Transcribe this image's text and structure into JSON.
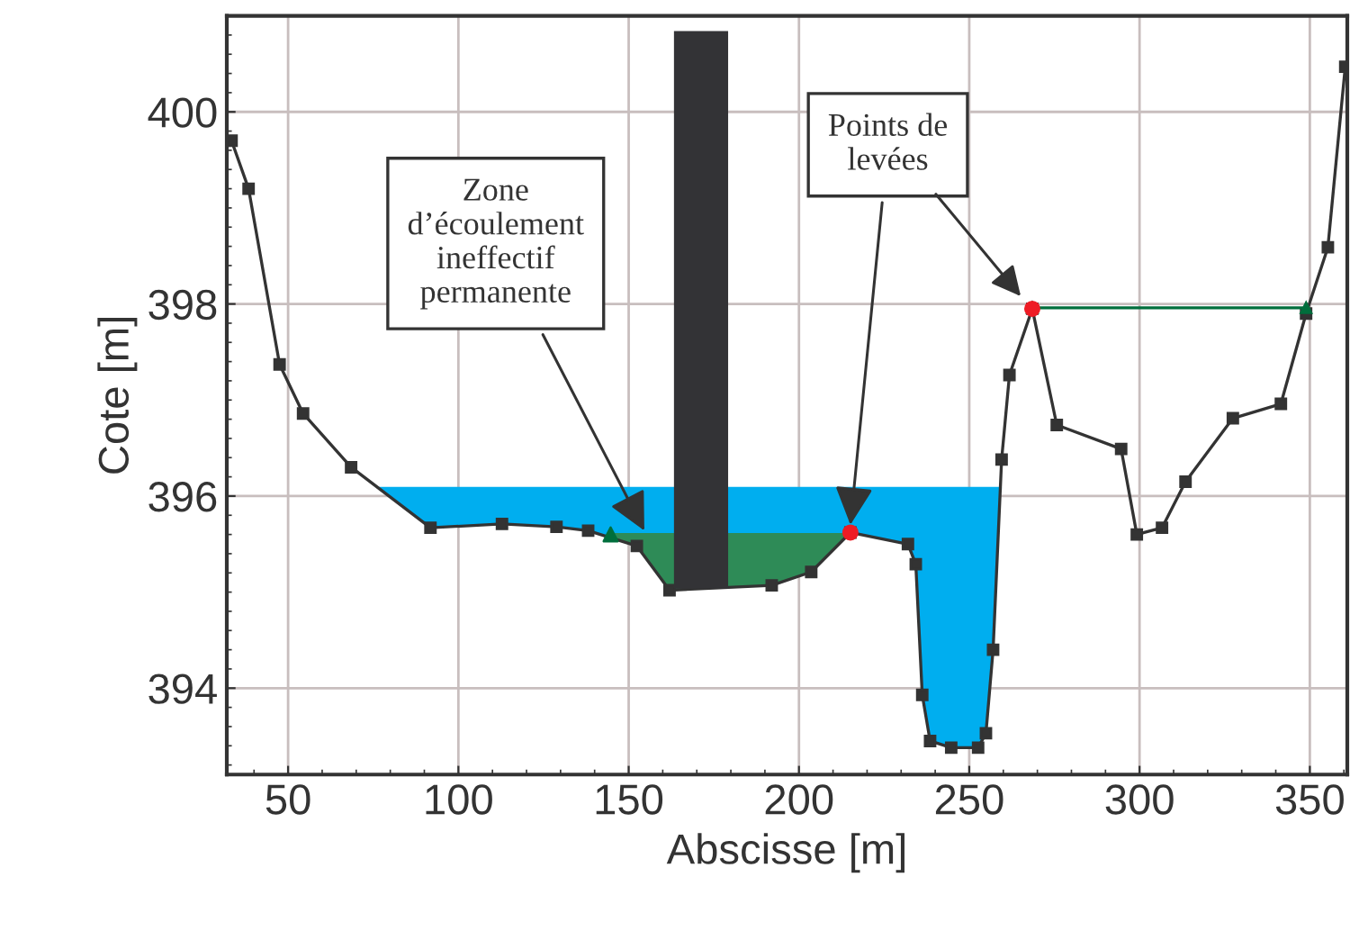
{
  "chart_data": {
    "type": "line",
    "xlabel": "Abscisse [m]",
    "ylabel": "Cote [m]",
    "xlim": [
      32,
      361
    ],
    "ylim": [
      393.1,
      401.0
    ],
    "xticks": [
      50,
      100,
      150,
      200,
      250,
      300,
      350
    ],
    "yticks": [
      394,
      396,
      398,
      400
    ],
    "grid": true,
    "legend": false,
    "series": [
      {
        "type": "area",
        "color": "#00aeef",
        "x": [
          77,
          91.8,
          112.8,
          128.8,
          138.1,
          152.4,
          162.0,
          192.0,
          203.6,
          215.1,
          232.0,
          234.3,
          236.2,
          238.5,
          244.7,
          252.6,
          254.9,
          257.0,
          259.1
        ],
        "values": [
          396.08,
          396.08,
          396.08,
          396.08,
          396.08,
          396.08,
          396.08,
          396.08,
          396.08,
          396.08,
          396.08,
          396.08,
          396.08,
          396.08,
          396.08,
          396.08,
          396.08,
          396.08,
          396.08
        ]
      },
      {
        "type": "area",
        "color": "#2e8b57",
        "x": [
          144.7,
          152.4,
          162.0,
          192.0,
          203.6,
          215.1
        ],
        "values": [
          395.6,
          395.6,
          395.6,
          395.6,
          395.6,
          395.6
        ]
      },
      {
        "color": "#333333",
        "marker": "square",
        "x": [
          33.4,
          38.4,
          47.5,
          54.4,
          68.5,
          91.8,
          112.8,
          128.8,
          138.1,
          152.4,
          162.0,
          192.0,
          203.6,
          215.1,
          232.0,
          234.3,
          236.2,
          238.5,
          244.7,
          252.6,
          254.9,
          257.0,
          259.5,
          261.8,
          268.5,
          275.7,
          294.6,
          299.2,
          306.6,
          313.5,
          327.4,
          341.5,
          348.9,
          355.3,
          360.4
        ],
        "values": [
          399.7,
          399.2,
          397.37,
          396.86,
          396.3,
          395.67,
          395.71,
          395.68,
          395.64,
          395.48,
          395.02,
          395.07,
          395.21,
          395.62,
          395.5,
          395.29,
          393.93,
          393.45,
          393.38,
          393.38,
          393.53,
          394.4,
          396.38,
          397.26,
          397.95,
          396.74,
          396.49,
          395.6,
          395.67,
          396.15,
          396.81,
          396.96,
          397.9,
          398.59,
          400.47
        ]
      },
      {
        "type": "scatter",
        "color": "#006e3c",
        "marker": "triangle",
        "x": [
          144.7
        ],
        "values": [
          395.6
        ]
      },
      {
        "type": "line",
        "color": "#006e3c",
        "marker": "triangle",
        "x": [
          268.5,
          348.9
        ],
        "values": [
          397.96,
          397.96
        ]
      },
      {
        "type": "scatter",
        "color": "#ee1c25",
        "marker": "circle",
        "x": [
          215.1,
          268.5
        ],
        "values": [
          395.62,
          397.95
        ]
      }
    ],
    "bands": [
      {
        "axis": "x",
        "from": 163.3,
        "to": 179.2,
        "color": "#333336"
      }
    ],
    "annotations": [
      {
        "text": "Zone\nd’écoulement\nineffectif\npermanente",
        "x": 154.6,
        "y": 395.64
      },
      {
        "text": "Points de\nlevées",
        "x": 215.1,
        "y": 395.7
      }
    ]
  }
}
